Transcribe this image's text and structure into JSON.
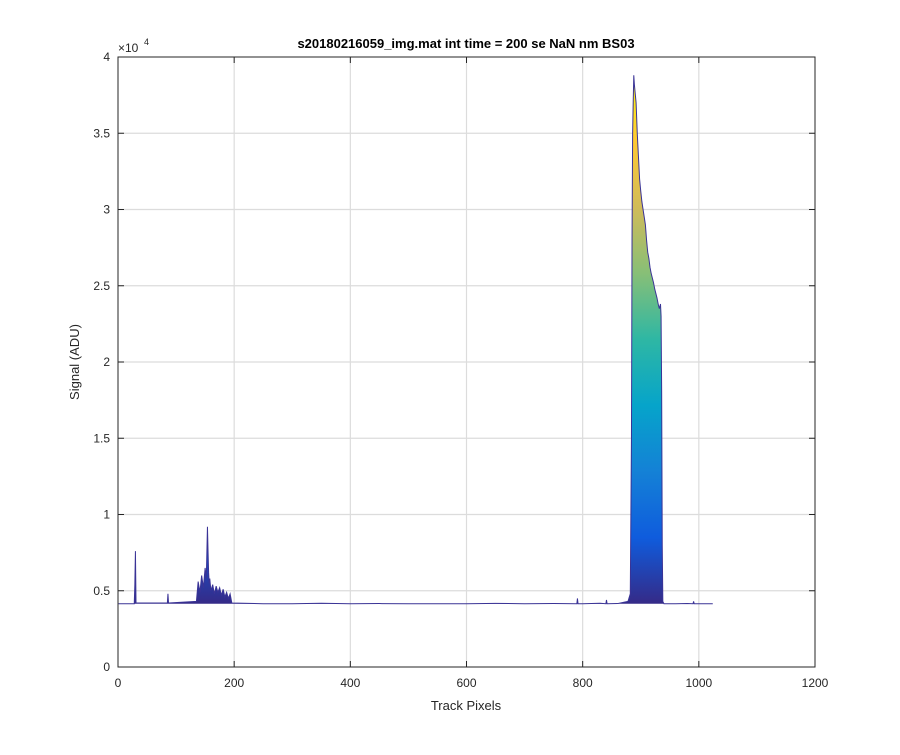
{
  "chart_data": {
    "type": "area",
    "title": "s20180216059_img.mat int time = 200 se  NaN nm BS03",
    "xlabel": "Track Pixels",
    "ylabel": "Signal (ADU)",
    "y_exponent_label": "×10",
    "y_exponent_power": "4",
    "xlim": [
      0,
      1200
    ],
    "ylim": [
      0,
      40000
    ],
    "x_ticks": [
      0,
      200,
      400,
      600,
      800,
      1000,
      1200
    ],
    "y_ticks": [
      0,
      5000,
      10000,
      15000,
      20000,
      25000,
      30000,
      35000,
      40000
    ],
    "y_tick_labels": [
      "0",
      "0.5",
      "1",
      "1.5",
      "2",
      "2.5",
      "3",
      "3.5",
      "4"
    ],
    "grid": true,
    "baseline": 4150,
    "colormap": [
      "#352a87",
      "#0f5cdd",
      "#1481d6",
      "#06a4ca",
      "#2eb7a4",
      "#87bf77",
      "#d1bb59",
      "#fec832",
      "#f9fb0e"
    ],
    "series": [
      {
        "x": [
          1,
          28,
          29,
          30,
          31,
          85,
          86,
          87,
          135,
          138,
          141,
          144,
          147,
          150,
          152,
          154,
          155,
          156,
          157,
          158,
          160,
          163,
          166,
          169,
          172,
          175,
          178,
          181,
          184,
          187,
          190,
          193,
          196,
          250,
          300,
          350,
          400,
          450,
          500,
          550,
          600,
          650,
          700,
          750,
          790,
          791,
          792,
          800,
          830,
          840,
          841,
          842,
          860,
          878,
          882,
          884,
          885,
          886,
          887,
          888,
          889,
          890,
          892,
          894,
          896,
          898,
          900,
          902,
          904,
          906,
          908,
          910,
          912,
          914,
          916,
          918,
          920,
          922,
          924,
          926,
          928,
          930,
          932,
          934,
          935,
          936,
          937,
          938,
          940,
          960,
          980,
          990,
          991,
          992,
          1000,
          1024
        ],
        "y": [
          4150,
          4150,
          5400,
          7600,
          4200,
          4200,
          4800,
          4200,
          4300,
          5600,
          4900,
          6000,
          5200,
          6500,
          5800,
          9200,
          7600,
          6200,
          5500,
          5800,
          5000,
          5400,
          4800,
          5300,
          4900,
          5200,
          4700,
          5100,
          4600,
          4900,
          4500,
          4800,
          4200,
          4150,
          4150,
          4180,
          4150,
          4160,
          4150,
          4150,
          4150,
          4170,
          4150,
          4160,
          4150,
          4500,
          4150,
          4150,
          4180,
          4150,
          4400,
          4150,
          4160,
          4300,
          4800,
          15000,
          28000,
          35000,
          37000,
          38800,
          38200,
          37800,
          37000,
          35000,
          33500,
          32000,
          31200,
          30500,
          30000,
          29500,
          29000,
          28000,
          27200,
          26800,
          26200,
          25800,
          25500,
          25200,
          24800,
          24500,
          24200,
          23800,
          23500,
          23800,
          23000,
          18000,
          8000,
          4300,
          4150,
          4150,
          4160,
          4150,
          4300,
          4150,
          4150,
          4150
        ]
      }
    ]
  }
}
